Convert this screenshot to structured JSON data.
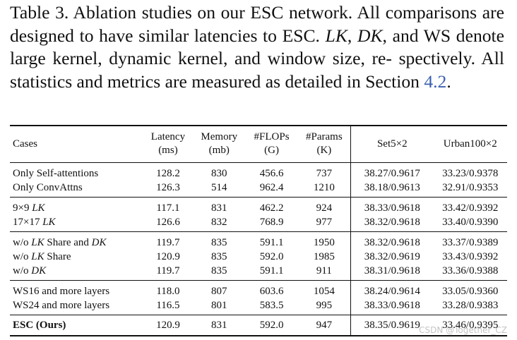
{
  "caption": {
    "line1": "Table 3. Ablation studies on our ESC network. All comparisons",
    "line2_pre": "are designed to have similar latencies to ESC. ",
    "lk": "LK",
    "comma1": ", ",
    "dk": "DK",
    "line2_post": ", and",
    "line3": "WS denote large kernel, dynamic kernel, and window size, re-",
    "line4": "spectively. All statistics and metrics are measured as detailed in",
    "line5_pre": "Section ",
    "section_ref": "4.2",
    "line5_post": "."
  },
  "table": {
    "headers": {
      "cases": "Cases",
      "latency": "Latency",
      "latency_unit": "(ms)",
      "memory": "Memory",
      "memory_unit": "(mb)",
      "flops": "#FLOPs",
      "flops_unit": "(G)",
      "params": "#Params",
      "params_unit": "(K)",
      "set5": "Set5×2",
      "urban100": "Urban100×2"
    },
    "groups": [
      {
        "rows": [
          {
            "case": "Only Self-attentions",
            "latency": "128.2",
            "memory": "830",
            "flops": "456.6",
            "params": "737",
            "set5": "38.27/0.9617",
            "urban100": "33.23/0.9378"
          },
          {
            "case": "Only ConvAttns",
            "latency": "126.3",
            "memory": "514",
            "flops": "962.4",
            "params": "1210",
            "set5": "38.18/0.9613",
            "urban100": "32.91/0.9353"
          }
        ]
      },
      {
        "rows": [
          {
            "case_pre": "9×9 ",
            "case_it": "LK",
            "case_post": "",
            "latency": "117.1",
            "memory": "831",
            "flops": "462.2",
            "params": "924",
            "set5": "38.33/0.9618",
            "urban100": "33.42/0.9392"
          },
          {
            "case_pre": "17×17 ",
            "case_it": "LK",
            "case_post": "",
            "latency": "126.6",
            "memory": "832",
            "flops": "768.9",
            "params": "977",
            "set5": "38.32/0.9618",
            "urban100": "33.40/0.9390"
          }
        ]
      },
      {
        "rows": [
          {
            "case_pre": "w/o ",
            "case_it": "LK",
            "case_mid": " Share and ",
            "case_it2": "DK",
            "latency": "119.7",
            "memory": "835",
            "flops": "591.1",
            "params": "1950",
            "set5": "38.32/0.9618",
            "urban100": "33.37/0.9389"
          },
          {
            "case_pre": "w/o ",
            "case_it": "LK",
            "case_post": " Share",
            "latency": "120.9",
            "memory": "835",
            "flops": "592.0",
            "params": "1985",
            "set5": "38.32/0.9619",
            "urban100": "33.43/0.9392"
          },
          {
            "case_pre": "w/o ",
            "case_it": "DK",
            "case_post": "",
            "latency": "119.7",
            "memory": "835",
            "flops": "591.1",
            "params": "911",
            "set5": "38.31/0.9618",
            "urban100": "33.36/0.9388"
          }
        ]
      },
      {
        "rows": [
          {
            "case": "WS16 and more layers",
            "latency": "118.0",
            "memory": "807",
            "flops": "603.6",
            "params": "1054",
            "set5": "38.24/0.9614",
            "urban100": "33.05/0.9360"
          },
          {
            "case": "WS24 and more layers",
            "latency": "116.5",
            "memory": "801",
            "flops": "583.5",
            "params": "995",
            "set5": "38.33/0.9618",
            "urban100": "33.28/0.9383"
          }
        ]
      }
    ],
    "final": {
      "case": "ESC (Ours)",
      "latency": "120.9",
      "memory": "831",
      "flops": "592.0",
      "params": "947",
      "set5": "38.35/0.9619",
      "urban100": "33.46/0.9395"
    }
  },
  "watermark": "CSDN @Together_CZ"
}
